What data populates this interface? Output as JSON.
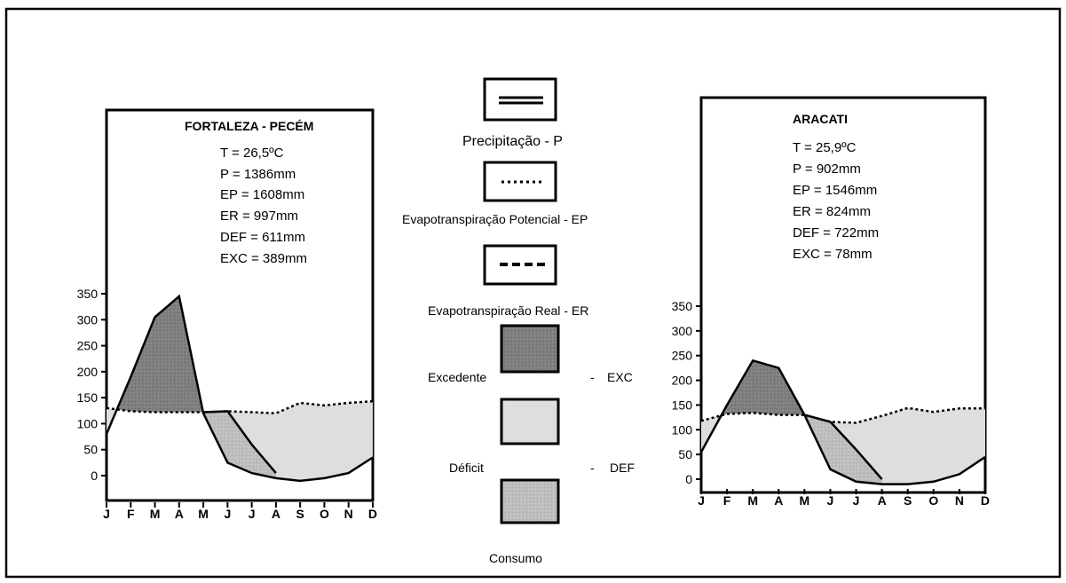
{
  "colors": {
    "excess": "#7f7f7f",
    "deficit": "#dedede",
    "consumption": "#bebebe",
    "line": "#000000",
    "background": "#ffffff"
  },
  "legend": {
    "items": [
      {
        "key": "precip",
        "label": "Precipitação  - P",
        "symbol": "double-solid-line-icon"
      },
      {
        "key": "ep",
        "label": "Evapotranspiração  Potencial - EP",
        "symbol": "dotted-line-icon"
      },
      {
        "key": "er",
        "label": "Evapotranspiração  Real  -  ER",
        "symbol": "dashed-line-icon"
      },
      {
        "key": "exc",
        "label": "Excedente",
        "code": "EXC",
        "symbol": "dark-fill-icon"
      },
      {
        "key": "def",
        "label": "Déficit",
        "code": "DEF",
        "symbol": "light-fill-icon"
      },
      {
        "key": "cons",
        "label": "Consumo",
        "symbol": "medium-fill-icon"
      }
    ],
    "separator": "-"
  },
  "chart_data": [
    {
      "type": "area",
      "title": "FORTALEZA - PECÉM",
      "stats": [
        "T = 26,5ºC",
        "P = 1386mm",
        "EP = 1608mm",
        "ER = 997mm",
        "DEF = 611mm",
        "EXC = 389mm"
      ],
      "categories": [
        "J",
        "F",
        "M",
        "A",
        "M",
        "J",
        "J",
        "A",
        "S",
        "O",
        "N",
        "D"
      ],
      "ylim": [
        0,
        350
      ],
      "yticks": [
        "350",
        "300",
        "250",
        "200",
        "150",
        "100",
        "50",
        "0"
      ],
      "series": [
        {
          "name": "Precipitação - P",
          "values": [
            80,
            190,
            305,
            345,
            120,
            25,
            5,
            -5,
            -10,
            -5,
            5,
            35
          ]
        },
        {
          "name": "Evapotranspiração Potencial - EP",
          "values": [
            130,
            124,
            122,
            122,
            122,
            124,
            122,
            120,
            140,
            135,
            140,
            143
          ]
        },
        {
          "name": "Evapotranspiração Real - ER",
          "values": [
            null,
            null,
            null,
            null,
            122,
            124,
            60,
            5,
            null,
            null,
            null,
            null
          ]
        }
      ]
    },
    {
      "type": "area",
      "title": "ARACATI",
      "stats": [
        "T = 25,9ºC",
        "P = 902mm",
        "EP = 1546mm",
        "ER = 824mm",
        "DEF = 722mm",
        "EXC = 78mm"
      ],
      "categories": [
        "J",
        "F",
        "M",
        "A",
        "M",
        "J",
        "J",
        "A",
        "S",
        "O",
        "N",
        "D"
      ],
      "ylim": [
        0,
        350
      ],
      "yticks": [
        "350",
        "300",
        "250",
        "200",
        "150",
        "100",
        "50",
        "0"
      ],
      "series": [
        {
          "name": "Precipitação - P",
          "values": [
            55,
            150,
            240,
            225,
            130,
            20,
            -5,
            -10,
            -10,
            -5,
            10,
            45
          ]
        },
        {
          "name": "Evapotranspiração Potencial - EP",
          "values": [
            118,
            132,
            134,
            130,
            130,
            116,
            114,
            128,
            144,
            136,
            143,
            143
          ]
        },
        {
          "name": "Evapotranspiração Real - ER",
          "values": [
            null,
            null,
            null,
            null,
            130,
            116,
            60,
            0,
            null,
            null,
            null,
            null
          ]
        }
      ]
    }
  ]
}
